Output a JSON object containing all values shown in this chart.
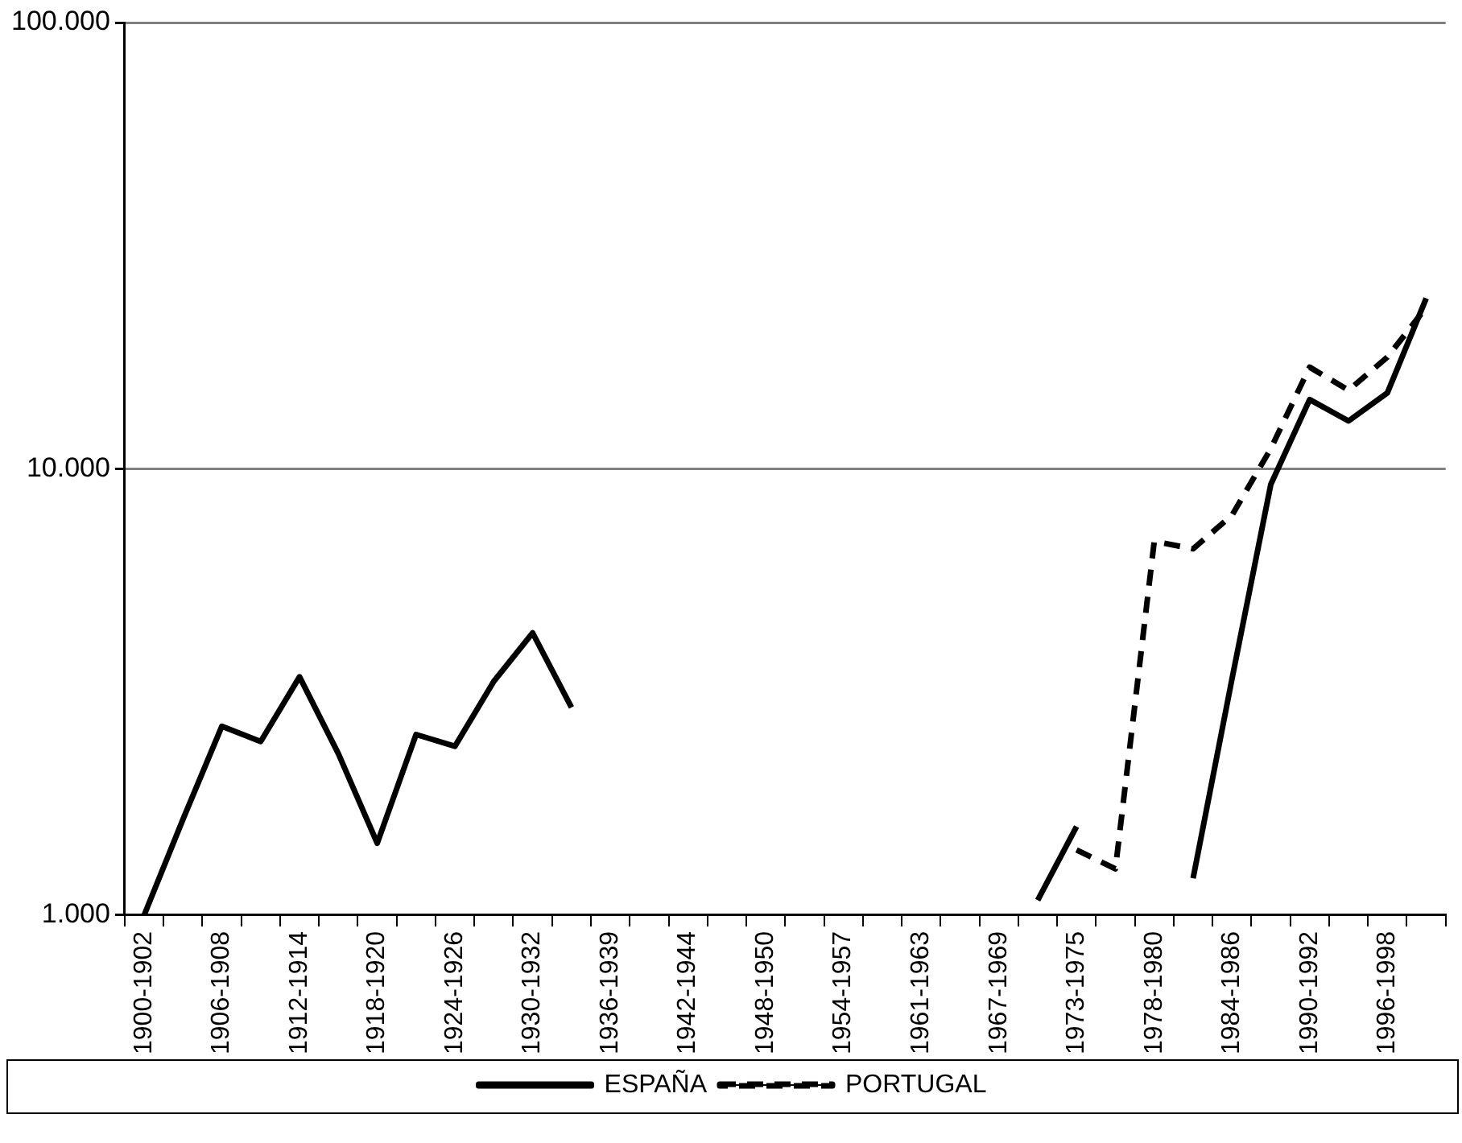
{
  "chart_data": {
    "type": "line",
    "categories": [
      "1900-1902",
      null,
      "1906-1908",
      null,
      "1912-1914",
      null,
      "1918-1920",
      null,
      "1924-1926",
      null,
      "1930-1932",
      null,
      "1936-1939",
      null,
      "1942-1944",
      null,
      "1948-1950",
      null,
      "1954-1957",
      null,
      "1961-1963",
      null,
      "1967-1969",
      null,
      "1973-1975",
      null,
      "1978-1980",
      null,
      "1984-1986",
      null,
      "1990-1992",
      null,
      "1996-1998",
      null
    ],
    "series": [
      {
        "name": "ESPAÑA",
        "color": "#000000",
        "line_style": "solid",
        "values": [
          1000,
          1640,
          2650,
          2450,
          3420,
          2300,
          1450,
          2540,
          2390,
          3340,
          4290,
          2920,
          null,
          null,
          null,
          null,
          null,
          null,
          null,
          null,
          null,
          null,
          null,
          1080,
          1580,
          null,
          null,
          1210,
          3380,
          9230,
          14300,
          12800,
          14800,
          24100
        ]
      },
      {
        "name": "PORTUGAL",
        "color": "#000000",
        "line_style": "dashed",
        "values": [
          null,
          null,
          null,
          null,
          null,
          null,
          null,
          null,
          null,
          null,
          null,
          null,
          null,
          null,
          null,
          null,
          null,
          null,
          null,
          null,
          null,
          null,
          null,
          null,
          1400,
          1270,
          6880,
          6620,
          7870,
          11100,
          16900,
          15000,
          17800,
          23000
        ]
      }
    ],
    "log": "y",
    "ylim": [
      1000,
      100000
    ],
    "yticks": [
      {
        "value": 1000,
        "label": "1.000"
      },
      {
        "value": 10000,
        "label": "10.000"
      },
      {
        "value": 100000,
        "label": "100.000"
      }
    ],
    "grid": "y",
    "legend": "bottom",
    "marker": "none"
  }
}
